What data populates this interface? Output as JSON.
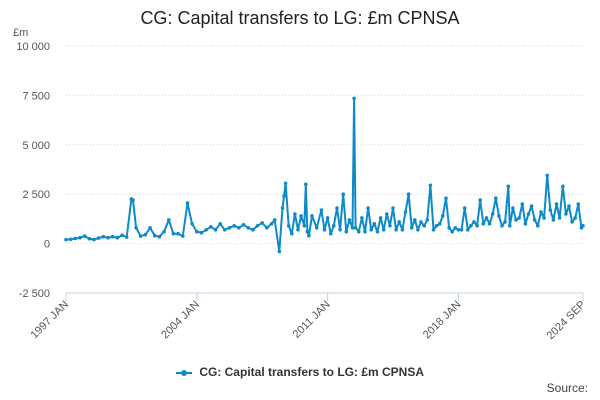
{
  "chart_data": {
    "type": "line",
    "title": "CG: Capital transfers to LG: £m CPNSA",
    "unit_label": "£m",
    "ylim": [
      -2500,
      10000
    ],
    "y_ticks": [
      -2500,
      0,
      2500,
      5000,
      7500,
      10000
    ],
    "y_tick_labels": [
      "-2 500",
      "0",
      "2 500",
      "5 000",
      "7 500",
      "10 000"
    ],
    "x_range": [
      "1997-01",
      "2024-09"
    ],
    "x_ticks": [
      "1997-01",
      "2004-01",
      "2011-01",
      "2018-01",
      "2024-09"
    ],
    "x_tick_labels": [
      "1997 JAN",
      "2004 JAN",
      "2011 JAN",
      "2018 JAN",
      "2024 SEP"
    ],
    "grid": "horizontal",
    "legend_position": "bottom",
    "series": [
      {
        "name": "CG: Capital transfers to LG: £m CPNSA",
        "color": "#0f8ac8",
        "points": [
          [
            "1997-01",
            200
          ],
          [
            "1997-04",
            220
          ],
          [
            "1997-07",
            260
          ],
          [
            "1997-10",
            300
          ],
          [
            "1998-01",
            380
          ],
          [
            "1998-04",
            250
          ],
          [
            "1998-07",
            200
          ],
          [
            "1998-10",
            280
          ],
          [
            "1999-01",
            350
          ],
          [
            "1999-04",
            300
          ],
          [
            "1999-07",
            350
          ],
          [
            "1999-10",
            300
          ],
          [
            "2000-01",
            420
          ],
          [
            "2000-04",
            330
          ],
          [
            "2000-07",
            2250
          ],
          [
            "2000-08",
            2200
          ],
          [
            "2000-10",
            800
          ],
          [
            "2001-01",
            380
          ],
          [
            "2001-04",
            450
          ],
          [
            "2001-07",
            800
          ],
          [
            "2001-10",
            400
          ],
          [
            "2002-01",
            350
          ],
          [
            "2002-04",
            600
          ],
          [
            "2002-07",
            1200
          ],
          [
            "2002-10",
            500
          ],
          [
            "2003-01",
            500
          ],
          [
            "2003-04",
            380
          ],
          [
            "2003-07",
            2050
          ],
          [
            "2003-10",
            1000
          ],
          [
            "2004-01",
            600
          ],
          [
            "2004-04",
            550
          ],
          [
            "2004-07",
            700
          ],
          [
            "2004-10",
            850
          ],
          [
            "2005-01",
            700
          ],
          [
            "2005-04",
            1000
          ],
          [
            "2005-07",
            700
          ],
          [
            "2005-10",
            800
          ],
          [
            "2006-01",
            900
          ],
          [
            "2006-04",
            800
          ],
          [
            "2006-07",
            950
          ],
          [
            "2006-10",
            800
          ],
          [
            "2007-01",
            700
          ],
          [
            "2007-04",
            900
          ],
          [
            "2007-07",
            1050
          ],
          [
            "2007-10",
            800
          ],
          [
            "2008-01",
            1000
          ],
          [
            "2008-03",
            1200
          ],
          [
            "2008-06",
            -400
          ],
          [
            "2008-08",
            1800
          ],
          [
            "2008-09",
            2400
          ],
          [
            "2008-10",
            3050
          ],
          [
            "2008-12",
            900
          ],
          [
            "2009-02",
            500
          ],
          [
            "2009-04",
            1500
          ],
          [
            "2009-06",
            700
          ],
          [
            "2009-08",
            1400
          ],
          [
            "2009-10",
            900
          ],
          [
            "2009-11",
            3000
          ],
          [
            "2009-12",
            600
          ],
          [
            "2010-01",
            400
          ],
          [
            "2010-03",
            1400
          ],
          [
            "2010-06",
            800
          ],
          [
            "2010-09",
            1700
          ],
          [
            "2010-11",
            700
          ],
          [
            "2011-01",
            1300
          ],
          [
            "2011-03",
            500
          ],
          [
            "2011-05",
            900
          ],
          [
            "2011-07",
            1800
          ],
          [
            "2011-09",
            700
          ],
          [
            "2011-11",
            2500
          ],
          [
            "2012-01",
            600
          ],
          [
            "2012-03",
            1200
          ],
          [
            "2012-05",
            800
          ],
          [
            "2012-06",
            7350
          ],
          [
            "2012-07",
            800
          ],
          [
            "2012-09",
            600
          ],
          [
            "2012-11",
            1300
          ],
          [
            "2013-01",
            600
          ],
          [
            "2013-03",
            1800
          ],
          [
            "2013-05",
            700
          ],
          [
            "2013-07",
            1000
          ],
          [
            "2013-09",
            600
          ],
          [
            "2013-11",
            1300
          ],
          [
            "2014-01",
            700
          ],
          [
            "2014-03",
            1500
          ],
          [
            "2014-05",
            900
          ],
          [
            "2014-07",
            1800
          ],
          [
            "2014-09",
            700
          ],
          [
            "2014-11",
            1100
          ],
          [
            "2015-01",
            700
          ],
          [
            "2015-03",
            1600
          ],
          [
            "2015-05",
            2500
          ],
          [
            "2015-07",
            800
          ],
          [
            "2015-09",
            1200
          ],
          [
            "2015-11",
            700
          ],
          [
            "2016-01",
            1100
          ],
          [
            "2016-03",
            900
          ],
          [
            "2016-05",
            1200
          ],
          [
            "2016-07",
            2950
          ],
          [
            "2016-09",
            700
          ],
          [
            "2016-11",
            900
          ],
          [
            "2017-01",
            1000
          ],
          [
            "2017-03",
            1400
          ],
          [
            "2017-05",
            2300
          ],
          [
            "2017-07",
            800
          ],
          [
            "2017-09",
            600
          ],
          [
            "2017-11",
            800
          ],
          [
            "2018-01",
            700
          ],
          [
            "2018-03",
            700
          ],
          [
            "2018-05",
            1800
          ],
          [
            "2018-07",
            700
          ],
          [
            "2018-09",
            900
          ],
          [
            "2018-11",
            1100
          ],
          [
            "2019-01",
            900
          ],
          [
            "2019-03",
            2200
          ],
          [
            "2019-05",
            1000
          ],
          [
            "2019-07",
            1300
          ],
          [
            "2019-09",
            1000
          ],
          [
            "2019-11",
            1500
          ],
          [
            "2020-01",
            2300
          ],
          [
            "2020-03",
            1400
          ],
          [
            "2020-05",
            900
          ],
          [
            "2020-07",
            1100
          ],
          [
            "2020-09",
            2900
          ],
          [
            "2020-10",
            900
          ],
          [
            "2020-12",
            1800
          ],
          [
            "2021-02",
            1200
          ],
          [
            "2021-04",
            1300
          ],
          [
            "2021-06",
            2000
          ],
          [
            "2021-08",
            1000
          ],
          [
            "2021-10",
            1500
          ],
          [
            "2021-12",
            1900
          ],
          [
            "2022-02",
            1200
          ],
          [
            "2022-04",
            900
          ],
          [
            "2022-06",
            1600
          ],
          [
            "2022-08",
            1300
          ],
          [
            "2022-10",
            3450
          ],
          [
            "2022-12",
            1700
          ],
          [
            "2023-02",
            1200
          ],
          [
            "2023-04",
            2000
          ],
          [
            "2023-06",
            1300
          ],
          [
            "2023-08",
            2900
          ],
          [
            "2023-10",
            1500
          ],
          [
            "2023-12",
            1900
          ],
          [
            "2024-02",
            1100
          ],
          [
            "2024-04",
            1300
          ],
          [
            "2024-06",
            2000
          ],
          [
            "2024-08",
            800
          ],
          [
            "2024-09",
            900
          ]
        ]
      }
    ]
  },
  "legend": {
    "label": "CG: Capital transfers to LG: £m CPNSA"
  },
  "source_label": "Source:"
}
